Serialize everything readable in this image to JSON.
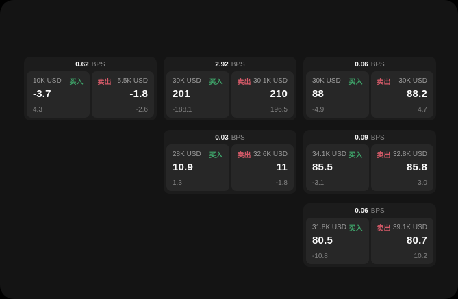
{
  "theme": {
    "buy_color": "#3fa66b",
    "sell_color": "#d45a68",
    "page_background": "#141414",
    "card_background": "#1c1c1c",
    "panel_background": "#272727"
  },
  "labels": {
    "bps_unit": "BPS",
    "buy": "买入",
    "sell": "卖出"
  },
  "cards": [
    {
      "bps": "0.62",
      "buy": {
        "amount": "10K USD",
        "side": "买入",
        "value": "-3.7",
        "delta": "4.3"
      },
      "sell": {
        "amount": "5.5K USD",
        "side": "卖出",
        "value": "-1.8",
        "delta": "-2.6"
      }
    },
    {
      "bps": "2.92",
      "buy": {
        "amount": "30K USD",
        "side": "买入",
        "value": "201",
        "delta": "-188.1"
      },
      "sell": {
        "amount": "30.1K USD",
        "side": "卖出",
        "value": "210",
        "delta": "196.5"
      }
    },
    {
      "bps": "0.06",
      "buy": {
        "amount": "30K USD",
        "side": "买入",
        "value": "88",
        "delta": "-4.9"
      },
      "sell": {
        "amount": "30K USD",
        "side": "卖出",
        "value": "88.2",
        "delta": "4.7"
      }
    },
    {
      "bps": "0.03",
      "buy": {
        "amount": "28K USD",
        "side": "买入",
        "value": "10.9",
        "delta": "1.3"
      },
      "sell": {
        "amount": "32.6K USD",
        "side": "卖出",
        "value": "11",
        "delta": "-1.8"
      }
    },
    {
      "bps": "0.09",
      "buy": {
        "amount": "34.1K USD",
        "side": "买入",
        "value": "85.5",
        "delta": "-3.1"
      },
      "sell": {
        "amount": "32.8K USD",
        "side": "卖出",
        "value": "85.8",
        "delta": "3.0"
      }
    },
    {
      "bps": "0.06",
      "buy": {
        "amount": "31.8K USD",
        "side": "买入",
        "value": "80.5",
        "delta": "-10.8"
      },
      "sell": {
        "amount": "39.1K USD",
        "side": "卖出",
        "value": "80.7",
        "delta": "10.2"
      }
    }
  ]
}
